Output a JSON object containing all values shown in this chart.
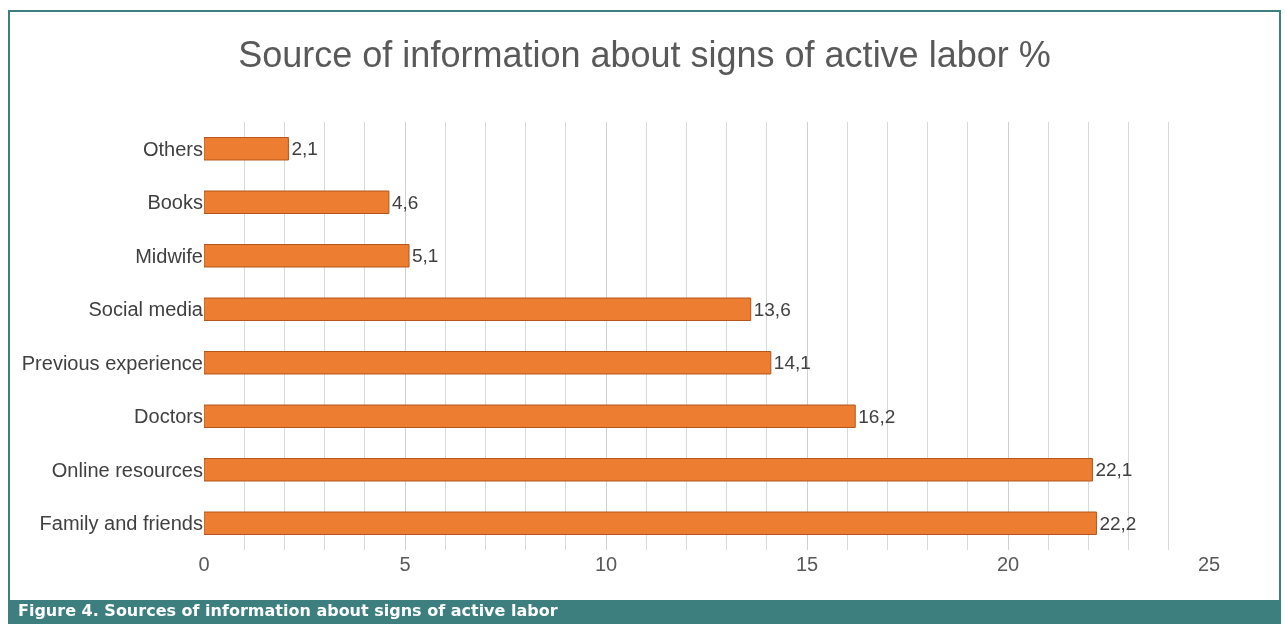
{
  "chart_data": {
    "type": "bar",
    "orientation": "horizontal",
    "title": "Source of information about signs of active labor %",
    "categories": [
      "Others",
      "Books",
      "Midwife",
      "Social media",
      "Previous experience",
      "Doctors",
      "Online resources",
      "Family and friends"
    ],
    "values": [
      2.1,
      4.6,
      5.1,
      13.6,
      14.1,
      16.2,
      22.1,
      22.2
    ],
    "value_labels": [
      "2,1",
      "4,6",
      "5,1",
      "13,6",
      "14,1",
      "16,2",
      "22,1",
      "22,2"
    ],
    "color": "#ed7d31",
    "xlim": [
      0,
      25
    ],
    "xticks": [
      0,
      5,
      10,
      15,
      20,
      25
    ],
    "grid": "x",
    "annotations": [
      "Figure 4. Sources of information about signs of active labor"
    ]
  }
}
